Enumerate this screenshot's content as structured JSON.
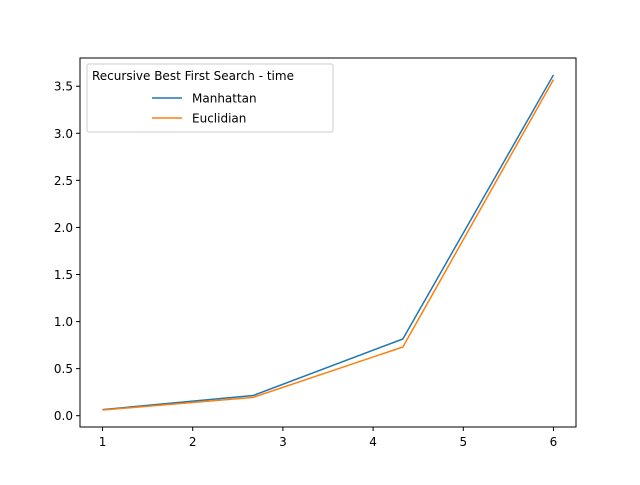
{
  "chart_data": {
    "type": "line",
    "title": "",
    "xlabel": "",
    "ylabel": "",
    "xlim": [
      0.75,
      6.25
    ],
    "ylim": [
      -0.12,
      3.8
    ],
    "xticks": [
      1,
      2,
      3,
      4,
      5,
      6
    ],
    "yticks": [
      0.0,
      0.5,
      1.0,
      1.5,
      2.0,
      2.5,
      3.0,
      3.5
    ],
    "xtick_labels": [
      "1",
      "2",
      "3",
      "4",
      "5",
      "6"
    ],
    "ytick_labels": [
      "0.0",
      "0.5",
      "1.0",
      "1.5",
      "2.0",
      "2.5",
      "3.0",
      "3.5"
    ],
    "grid": false,
    "legend": {
      "title": "Recursive Best First Search - time",
      "placement": "top-left"
    },
    "series": [
      {
        "name": "Manhattan",
        "color": "#1f77b4",
        "x": [
          1,
          2.67,
          4.33,
          6
        ],
        "y": [
          0.065,
          0.215,
          0.815,
          3.62
        ]
      },
      {
        "name": "Euclidian",
        "color": "#ff7f0e",
        "x": [
          1,
          2.67,
          4.33,
          6
        ],
        "y": [
          0.06,
          0.195,
          0.73,
          3.57
        ]
      }
    ]
  }
}
